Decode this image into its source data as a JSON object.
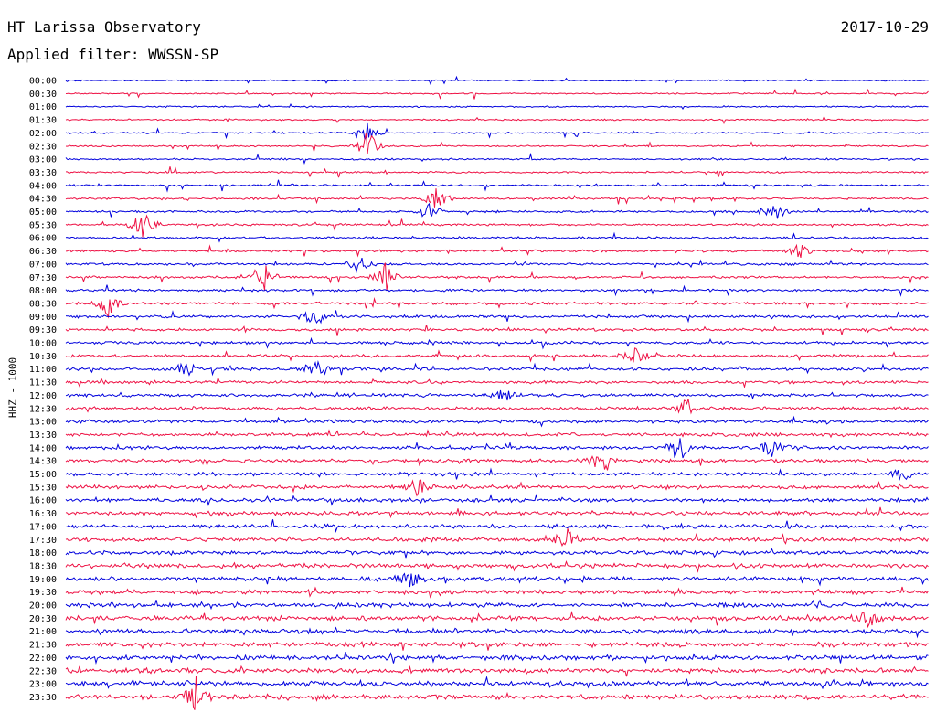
{
  "header": {
    "station": "HT Larissa Observatory",
    "date": "2017-10-29",
    "filter": "Applied filter: WWSSN-SP"
  },
  "chart_data": {
    "type": "line",
    "subtype": "helicorder",
    "ylabel": "HHZ - 1000",
    "row_labels": [
      "00:00",
      "00:30",
      "01:00",
      "01:30",
      "02:00",
      "02:30",
      "03:00",
      "03:30",
      "04:00",
      "04:30",
      "05:00",
      "05:30",
      "06:00",
      "06:30",
      "07:00",
      "07:30",
      "08:00",
      "08:30",
      "09:00",
      "09:30",
      "10:00",
      "10:30",
      "11:00",
      "11:30",
      "12:00",
      "12:30",
      "13:00",
      "13:30",
      "14:00",
      "14:30",
      "15:00",
      "15:30",
      "16:00",
      "16:30",
      "17:00",
      "17:30",
      "18:00",
      "18:30",
      "19:00",
      "19:30",
      "20:00",
      "20:30",
      "21:00",
      "21:30",
      "22:00",
      "22:30",
      "23:00",
      "23:30"
    ],
    "colors": [
      "#0000dd",
      "#ee1144"
    ],
    "events": [
      {
        "row": 5,
        "pos": 0.35,
        "amp": 1.0
      },
      {
        "row": 4,
        "pos": 0.35,
        "amp": 0.6
      },
      {
        "row": 9,
        "pos": 0.43,
        "amp": 0.7
      },
      {
        "row": 10,
        "pos": 0.42,
        "amp": 0.6
      },
      {
        "row": 10,
        "pos": 0.82,
        "amp": 0.8
      },
      {
        "row": 11,
        "pos": 0.09,
        "amp": 1.0
      },
      {
        "row": 13,
        "pos": 0.85,
        "amp": 0.5
      },
      {
        "row": 14,
        "pos": 0.34,
        "amp": 0.6
      },
      {
        "row": 15,
        "pos": 0.23,
        "amp": 0.9
      },
      {
        "row": 15,
        "pos": 0.37,
        "amp": 0.9
      },
      {
        "row": 17,
        "pos": 0.05,
        "amp": 0.9
      },
      {
        "row": 18,
        "pos": 0.29,
        "amp": 0.8
      },
      {
        "row": 21,
        "pos": 0.66,
        "amp": 0.6
      },
      {
        "row": 22,
        "pos": 0.14,
        "amp": 0.5
      },
      {
        "row": 22,
        "pos": 0.29,
        "amp": 0.7
      },
      {
        "row": 24,
        "pos": 0.51,
        "amp": 0.5
      },
      {
        "row": 25,
        "pos": 0.72,
        "amp": 0.6
      },
      {
        "row": 28,
        "pos": 0.71,
        "amp": 1.0
      },
      {
        "row": 28,
        "pos": 0.82,
        "amp": 0.9
      },
      {
        "row": 29,
        "pos": 0.62,
        "amp": 0.7
      },
      {
        "row": 30,
        "pos": 0.97,
        "amp": 0.5
      },
      {
        "row": 31,
        "pos": 0.41,
        "amp": 0.6
      },
      {
        "row": 35,
        "pos": 0.58,
        "amp": 0.7
      },
      {
        "row": 38,
        "pos": 0.4,
        "amp": 0.8
      },
      {
        "row": 41,
        "pos": 0.93,
        "amp": 0.6
      },
      {
        "row": 47,
        "pos": 0.15,
        "amp": 1.0
      }
    ]
  }
}
